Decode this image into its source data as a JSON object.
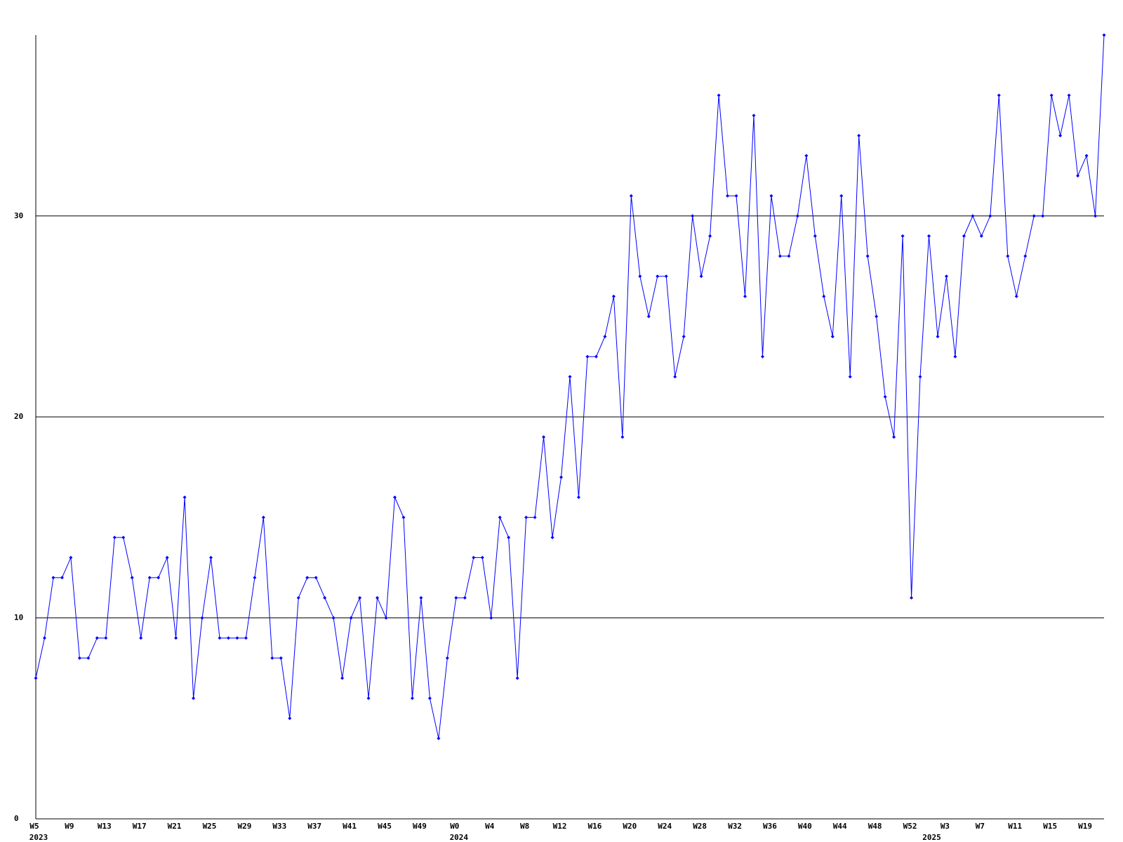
{
  "chart_data": {
    "type": "line",
    "categories": [
      "W5",
      null,
      null,
      null,
      "W9",
      null,
      null,
      null,
      "W13",
      null,
      null,
      null,
      "W17",
      null,
      null,
      null,
      "W21",
      null,
      null,
      null,
      "W25",
      null,
      null,
      null,
      "W29",
      null,
      null,
      null,
      "W33",
      null,
      null,
      null,
      "W37",
      null,
      null,
      null,
      "W41",
      null,
      null,
      null,
      "W45",
      null,
      null,
      null,
      "W49",
      null,
      null,
      null,
      "W0",
      null,
      null,
      null,
      "W4",
      null,
      null,
      null,
      "W8",
      null,
      null,
      null,
      "W12",
      null,
      null,
      null,
      "W16",
      null,
      null,
      null,
      "W20",
      null,
      null,
      null,
      "W24",
      null,
      null,
      null,
      "W28",
      null,
      null,
      null,
      "W32",
      null,
      null,
      null,
      "W36",
      null,
      null,
      null,
      "W40",
      null,
      null,
      null,
      "W44",
      null,
      null,
      null,
      "W48",
      null,
      null,
      null,
      "W52",
      null,
      null,
      null,
      "W3",
      null,
      null,
      null,
      "W7",
      null,
      null,
      null,
      "W11",
      null,
      null,
      null,
      "W15",
      null,
      null,
      null,
      "W19",
      null,
      null
    ],
    "years": [
      "2023",
      null,
      null,
      null,
      null,
      null,
      null,
      null,
      null,
      null,
      null,
      null,
      null,
      null,
      null,
      null,
      null,
      null,
      null,
      null,
      null,
      null,
      null,
      null,
      null,
      null,
      null,
      null,
      null,
      null,
      null,
      null,
      null,
      null,
      null,
      null,
      null,
      null,
      null,
      null,
      null,
      null,
      null,
      null,
      null,
      null,
      null,
      null,
      "2024",
      null,
      null,
      null,
      null,
      null,
      null,
      null,
      null,
      null,
      null,
      null,
      null,
      null,
      null,
      null,
      null,
      null,
      null,
      null,
      null,
      null,
      null,
      null,
      null,
      null,
      null,
      null,
      null,
      null,
      null,
      null,
      null,
      null,
      null,
      null,
      null,
      null,
      null,
      null,
      null,
      null,
      null,
      null,
      null,
      null,
      null,
      null,
      null,
      null,
      null,
      null,
      null,
      null,
      "2025",
      null,
      null,
      null,
      null,
      null,
      null,
      null,
      null,
      null,
      null,
      null,
      null,
      null,
      null,
      null,
      null,
      null,
      null,
      null,
      null,
      null
    ],
    "values": [
      7,
      9,
      12,
      12,
      13,
      8,
      8,
      9,
      9,
      14,
      14,
      12,
      9,
      12,
      12,
      13,
      9,
      16,
      6,
      10,
      13,
      9,
      9,
      9,
      9,
      12,
      15,
      8,
      8,
      5,
      11,
      12,
      12,
      11,
      10,
      7,
      10,
      11,
      6,
      11,
      10,
      16,
      15,
      6,
      11,
      6,
      4,
      8,
      11,
      11,
      13,
      13,
      10,
      15,
      14,
      7,
      15,
      15,
      19,
      14,
      17,
      22,
      16,
      23,
      23,
      24,
      26,
      19,
      31,
      27,
      25,
      27,
      27,
      22,
      24,
      30,
      27,
      29,
      36,
      31,
      31,
      26,
      35,
      23,
      31,
      28,
      28,
      30,
      33,
      29,
      26,
      24,
      31,
      22,
      34,
      28,
      25,
      21,
      19,
      29,
      11,
      22,
      29,
      24,
      27,
      23,
      29,
      30,
      29,
      30,
      36,
      28,
      26,
      28,
      30,
      30,
      36,
      34,
      36,
      32,
      33,
      30,
      39
    ],
    "color": "#0000ff",
    "ylim": [
      0,
      39
    ],
    "yticks": [
      0,
      10,
      20,
      30
    ],
    "grid": true
  }
}
